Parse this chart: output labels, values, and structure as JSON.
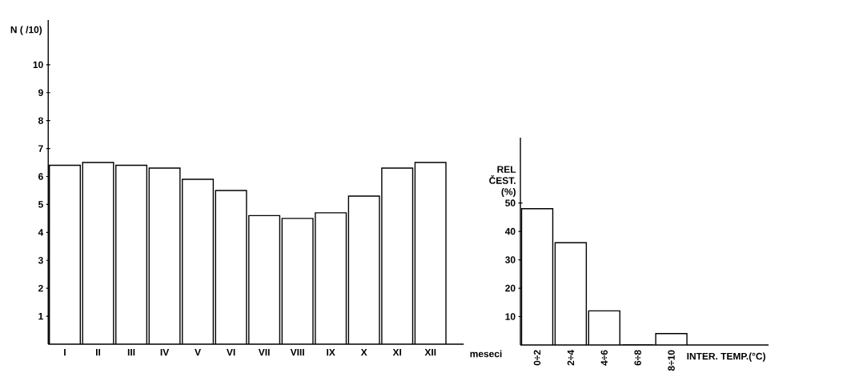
{
  "chart_data": [
    {
      "type": "bar",
      "xlabel": "meseci",
      "ylabel": "N ( /10)",
      "categories": [
        "I",
        "II",
        "III",
        "IV",
        "V",
        "VI",
        "VII",
        "VIII",
        "IX",
        "X",
        "XI",
        "XII"
      ],
      "values": [
        6.4,
        6.5,
        6.4,
        6.3,
        5.9,
        5.5,
        4.6,
        4.5,
        4.7,
        5.3,
        6.3,
        6.5
      ],
      "color": "#ffffff",
      "ylim": [
        0,
        11.6
      ],
      "yticks": [
        1,
        2,
        3,
        4,
        5,
        6,
        7,
        8,
        9,
        10
      ]
    },
    {
      "type": "bar",
      "xlabel": "INTER. TEMP.(°C)",
      "ylabel": "REL ČEST. (%)",
      "categories": [
        "0÷2",
        "2÷4",
        "4÷6",
        "6÷8",
        "8÷10"
      ],
      "values": [
        48,
        36,
        12,
        0,
        4
      ],
      "color": "#ffffff",
      "ylim": [
        0,
        73
      ],
      "yticks": [
        10,
        20,
        30,
        40,
        50
      ]
    }
  ]
}
